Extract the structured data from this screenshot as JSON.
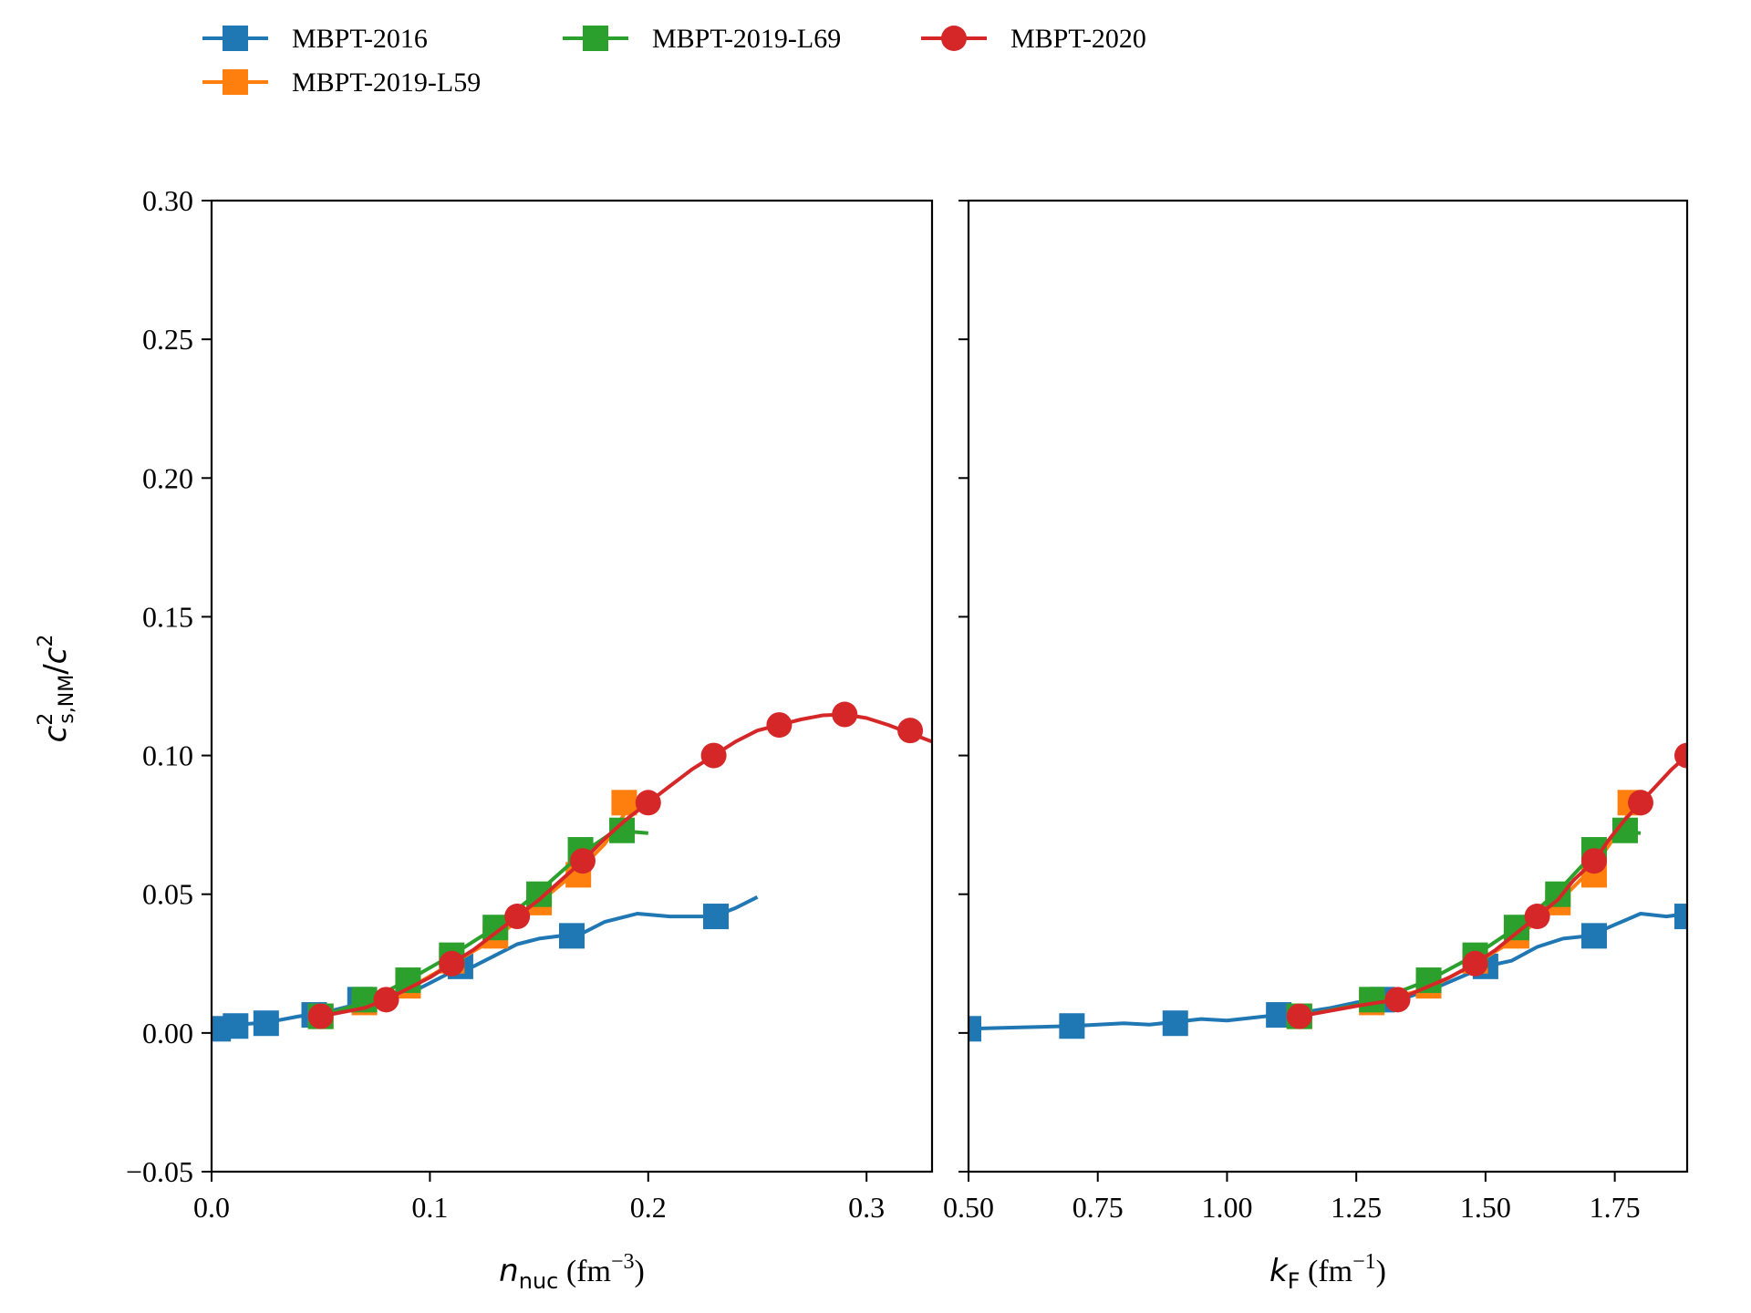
{
  "chart_data": [
    {
      "type": "line",
      "xlabel": {
        "var": "n",
        "sub": "nuc",
        "unit": "fm",
        "exp": "−3"
      },
      "ylabel": {
        "var": "c",
        "sup": "2",
        "sub": "s,NM",
        "slash": "/",
        "var2": "c",
        "sup2": "2"
      },
      "xlim": [
        0.0,
        0.33
      ],
      "ylim": [
        -0.05,
        0.3
      ],
      "xticks": [
        0.0,
        0.1,
        0.2,
        0.3
      ],
      "xtick_labels": [
        "0.0",
        "0.1",
        "0.2",
        "0.3"
      ],
      "yticks": [
        -0.05,
        0.0,
        0.05,
        0.1,
        0.15,
        0.2,
        0.25,
        0.3
      ],
      "ytick_labels": [
        "−0.05",
        "0.00",
        "0.05",
        "0.10",
        "0.15",
        "0.20",
        "0.25",
        "0.30"
      ],
      "grid": false,
      "series": [
        {
          "name": "MBPT-2016",
          "line": [
            [
              0.002,
              0.0015
            ],
            [
              0.006,
              0.002
            ],
            [
              0.012,
              0.003
            ],
            [
              0.02,
              0.0035
            ],
            [
              0.03,
              0.0045
            ],
            [
              0.04,
              0.006
            ],
            [
              0.05,
              0.007
            ],
            [
              0.06,
              0.009
            ],
            [
              0.07,
              0.011
            ],
            [
              0.08,
              0.012
            ],
            [
              0.09,
              0.014
            ],
            [
              0.1,
              0.018
            ],
            [
              0.11,
              0.022
            ],
            [
              0.12,
              0.024
            ],
            [
              0.13,
              0.028
            ],
            [
              0.14,
              0.032
            ],
            [
              0.15,
              0.034
            ],
            [
              0.16,
              0.035
            ],
            [
              0.17,
              0.036
            ],
            [
              0.18,
              0.04
            ],
            [
              0.19,
              0.042
            ],
            [
              0.195,
              0.043
            ],
            [
              0.21,
              0.042
            ],
            [
              0.23,
              0.042
            ],
            [
              0.24,
              0.045
            ],
            [
              0.25,
              0.049
            ]
          ],
          "markers": [
            [
              0.003,
              0.0015
            ],
            [
              0.011,
              0.0025
            ],
            [
              0.025,
              0.0035
            ],
            [
              0.047,
              0.0065
            ],
            [
              0.068,
              0.012
            ],
            [
              0.114,
              0.024
            ],
            [
              0.165,
              0.035
            ],
            [
              0.231,
              0.042
            ]
          ]
        },
        {
          "name": "MBPT-2019-L59",
          "line": [
            [
              0.05,
              0.006
            ],
            [
              0.07,
              0.011
            ],
            [
              0.09,
              0.016
            ],
            [
              0.11,
              0.025
            ],
            [
              0.13,
              0.034
            ],
            [
              0.15,
              0.047
            ],
            [
              0.17,
              0.06
            ],
            [
              0.18,
              0.068
            ],
            [
              0.19,
              0.08
            ]
          ],
          "markers": [
            [
              0.05,
              0.006
            ],
            [
              0.07,
              0.011
            ],
            [
              0.09,
              0.017
            ],
            [
              0.11,
              0.026
            ],
            [
              0.13,
              0.035
            ],
            [
              0.15,
              0.047
            ],
            [
              0.168,
              0.057
            ],
            [
              0.189,
              0.083
            ]
          ]
        },
        {
          "name": "MBPT-2019-L69",
          "line": [
            [
              0.05,
              0.006
            ],
            [
              0.07,
              0.011
            ],
            [
              0.09,
              0.019
            ],
            [
              0.11,
              0.028
            ],
            [
              0.13,
              0.038
            ],
            [
              0.15,
              0.051
            ],
            [
              0.17,
              0.065
            ],
            [
              0.185,
              0.073
            ],
            [
              0.2,
              0.072
            ]
          ],
          "markers": [
            [
              0.05,
              0.006
            ],
            [
              0.07,
              0.012
            ],
            [
              0.09,
              0.019
            ],
            [
              0.11,
              0.028
            ],
            [
              0.13,
              0.038
            ],
            [
              0.15,
              0.05
            ],
            [
              0.169,
              0.066
            ],
            [
              0.188,
              0.073
            ]
          ]
        },
        {
          "name": "MBPT-2020",
          "line": [
            [
              0.05,
              0.006
            ],
            [
              0.06,
              0.0075
            ],
            [
              0.07,
              0.009
            ],
            [
              0.08,
              0.012
            ],
            [
              0.09,
              0.016
            ],
            [
              0.1,
              0.02
            ],
            [
              0.11,
              0.025
            ],
            [
              0.12,
              0.03
            ],
            [
              0.13,
              0.036
            ],
            [
              0.14,
              0.042
            ],
            [
              0.15,
              0.048
            ],
            [
              0.16,
              0.055
            ],
            [
              0.17,
              0.062
            ],
            [
              0.18,
              0.07
            ],
            [
              0.19,
              0.077
            ],
            [
              0.2,
              0.083
            ],
            [
              0.21,
              0.089
            ],
            [
              0.22,
              0.095
            ],
            [
              0.23,
              0.1
            ],
            [
              0.24,
              0.105
            ],
            [
              0.25,
              0.109
            ],
            [
              0.26,
              0.111
            ],
            [
              0.27,
              0.113
            ],
            [
              0.28,
              0.1145
            ],
            [
              0.29,
              0.1148
            ],
            [
              0.3,
              0.1135
            ],
            [
              0.31,
              0.111
            ],
            [
              0.32,
              0.108
            ],
            [
              0.33,
              0.105
            ]
          ],
          "markers": [
            [
              0.05,
              0.006
            ],
            [
              0.08,
              0.012
            ],
            [
              0.11,
              0.025
            ],
            [
              0.14,
              0.042
            ],
            [
              0.17,
              0.062
            ],
            [
              0.2,
              0.083
            ],
            [
              0.23,
              0.1
            ],
            [
              0.26,
              0.111
            ],
            [
              0.29,
              0.1148
            ],
            [
              0.32,
              0.109
            ]
          ]
        }
      ]
    },
    {
      "type": "line",
      "xlabel": {
        "var": "k",
        "sub": "F",
        "unit": "fm",
        "exp": "−1"
      },
      "xlim": [
        0.5,
        1.89
      ],
      "ylim": [
        -0.05,
        0.3
      ],
      "xticks": [
        0.5,
        0.75,
        1.0,
        1.25,
        1.5,
        1.75
      ],
      "xtick_labels": [
        "0.50",
        "0.75",
        "1.00",
        "1.25",
        "1.50",
        "1.75"
      ],
      "yticks": [
        -0.05,
        0.0,
        0.05,
        0.1,
        0.15,
        0.2,
        0.25,
        0.3
      ],
      "grid": false,
      "series": [
        {
          "name": "MBPT-2016",
          "line": [
            [
              0.5,
              0.0015
            ],
            [
              0.6,
              0.002
            ],
            [
              0.7,
              0.0025
            ],
            [
              0.8,
              0.0035
            ],
            [
              0.85,
              0.003
            ],
            [
              0.9,
              0.004
            ],
            [
              0.95,
              0.005
            ],
            [
              1.0,
              0.0045
            ],
            [
              1.05,
              0.0055
            ],
            [
              1.1,
              0.0065
            ],
            [
              1.15,
              0.0075
            ],
            [
              1.2,
              0.009
            ],
            [
              1.25,
              0.011
            ],
            [
              1.3,
              0.012
            ],
            [
              1.35,
              0.013
            ],
            [
              1.4,
              0.016
            ],
            [
              1.45,
              0.02
            ],
            [
              1.5,
              0.024
            ],
            [
              1.55,
              0.026
            ],
            [
              1.6,
              0.031
            ],
            [
              1.65,
              0.034
            ],
            [
              1.7,
              0.035
            ],
            [
              1.75,
              0.039
            ],
            [
              1.8,
              0.043
            ],
            [
              1.85,
              0.042
            ],
            [
              1.89,
              0.043
            ]
          ],
          "markers": [
            [
              0.5,
              0.0015
            ],
            [
              0.7,
              0.0025
            ],
            [
              0.9,
              0.0035
            ],
            [
              1.1,
              0.0065
            ],
            [
              1.3,
              0.012
            ],
            [
              1.5,
              0.024
            ],
            [
              1.71,
              0.035
            ],
            [
              1.89,
              0.042
            ]
          ]
        },
        {
          "name": "MBPT-2019-L59",
          "line": [
            [
              1.14,
              0.006
            ],
            [
              1.28,
              0.011
            ],
            [
              1.39,
              0.016
            ],
            [
              1.48,
              0.025
            ],
            [
              1.56,
              0.034
            ],
            [
              1.64,
              0.047
            ],
            [
              1.71,
              0.06
            ],
            [
              1.74,
              0.068
            ],
            [
              1.78,
              0.08
            ]
          ],
          "markers": [
            [
              1.14,
              0.006
            ],
            [
              1.28,
              0.011
            ],
            [
              1.39,
              0.017
            ],
            [
              1.48,
              0.026
            ],
            [
              1.56,
              0.035
            ],
            [
              1.64,
              0.047
            ],
            [
              1.71,
              0.057
            ],
            [
              1.78,
              0.083
            ]
          ]
        },
        {
          "name": "MBPT-2019-L69",
          "line": [
            [
              1.14,
              0.006
            ],
            [
              1.28,
              0.011
            ],
            [
              1.39,
              0.019
            ],
            [
              1.48,
              0.028
            ],
            [
              1.56,
              0.038
            ],
            [
              1.64,
              0.051
            ],
            [
              1.71,
              0.065
            ],
            [
              1.76,
              0.073
            ],
            [
              1.8,
              0.072
            ]
          ],
          "markers": [
            [
              1.14,
              0.006
            ],
            [
              1.28,
              0.012
            ],
            [
              1.39,
              0.019
            ],
            [
              1.48,
              0.028
            ],
            [
              1.56,
              0.038
            ],
            [
              1.64,
              0.05
            ],
            [
              1.71,
              0.066
            ],
            [
              1.77,
              0.073
            ]
          ]
        },
        {
          "name": "MBPT-2020",
          "line": [
            [
              1.14,
              0.006
            ],
            [
              1.2,
              0.008
            ],
            [
              1.26,
              0.01
            ],
            [
              1.33,
              0.012
            ],
            [
              1.38,
              0.016
            ],
            [
              1.43,
              0.02
            ],
            [
              1.48,
              0.025
            ],
            [
              1.52,
              0.03
            ],
            [
              1.56,
              0.036
            ],
            [
              1.6,
              0.042
            ],
            [
              1.64,
              0.048
            ],
            [
              1.67,
              0.055
            ],
            [
              1.71,
              0.062
            ],
            [
              1.74,
              0.07
            ],
            [
              1.77,
              0.077
            ],
            [
              1.8,
              0.083
            ],
            [
              1.83,
              0.089
            ],
            [
              1.86,
              0.095
            ],
            [
              1.89,
              0.1
            ]
          ],
          "markers": [
            [
              1.14,
              0.006
            ],
            [
              1.33,
              0.012
            ],
            [
              1.48,
              0.025
            ],
            [
              1.6,
              0.042
            ],
            [
              1.71,
              0.062
            ],
            [
              1.8,
              0.083
            ],
            [
              1.89,
              0.1
            ]
          ]
        }
      ]
    }
  ],
  "legend": [
    {
      "name": "MBPT-2016",
      "color": "#1f77b4",
      "marker": "square"
    },
    {
      "name": "MBPT-2019-L59",
      "color": "#ff7f0e",
      "marker": "square"
    },
    {
      "name": "MBPT-2019-L69",
      "color": "#2ca02c",
      "marker": "square"
    },
    {
      "name": "MBPT-2020",
      "color": "#d62728",
      "marker": "circle"
    }
  ],
  "legend_placement": "top-left, above plots, 3 columns",
  "colors": {
    "MBPT-2016": "#1f77b4",
    "MBPT-2019-L59": "#ff7f0e",
    "MBPT-2019-L69": "#2ca02c",
    "MBPT-2020": "#d62728"
  }
}
